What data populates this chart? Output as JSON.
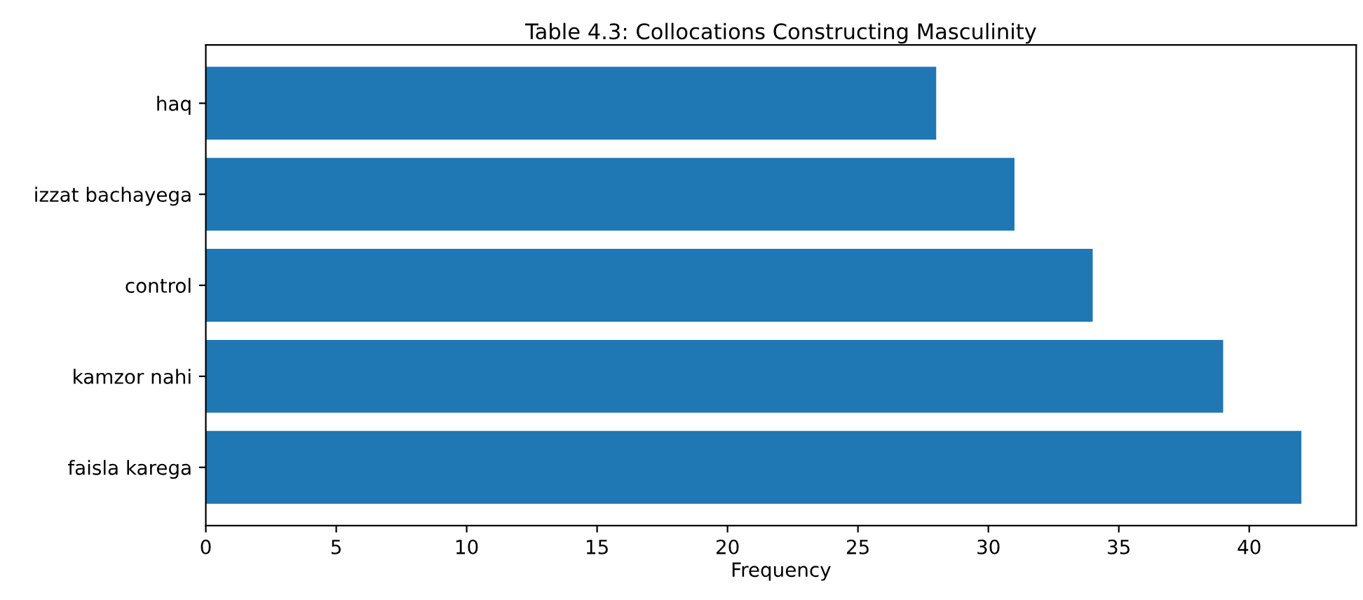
{
  "chart_data": {
    "type": "bar",
    "orientation": "horizontal",
    "title": "Table 4.3: Collocations Constructing Masculinity",
    "xlabel": "Frequency",
    "categories": [
      "haq",
      "izzat bachayega",
      "control",
      "kamzor nahi",
      "faisla karega"
    ],
    "values": [
      28,
      31,
      34,
      39,
      42
    ],
    "color": "#1f77b4",
    "xlim": [
      0,
      44.1
    ],
    "xticks": [
      0,
      5,
      10,
      15,
      20,
      25,
      30,
      35,
      40
    ],
    "grid": false,
    "legend": false
  }
}
